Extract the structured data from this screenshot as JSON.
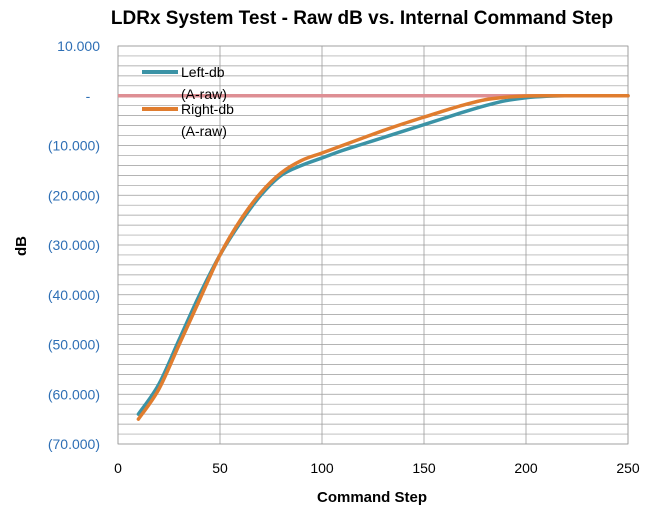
{
  "colors": {
    "left_series": "#3b93a6",
    "right_series": "#e07d2f",
    "reference_line": "#de8f94",
    "grid_line": "#9b9b9b",
    "y_tick_text": "#2e6fb5"
  },
  "chart_data": {
    "type": "line",
    "title": "LDRx System Test - Raw dB vs. Internal Command Step",
    "xlabel": "Command Step",
    "ylabel": "dB",
    "xlim": [
      0,
      250
    ],
    "ylim": [
      -70,
      10
    ],
    "x_ticks": [
      0,
      50,
      100,
      150,
      200,
      250
    ],
    "x_tick_labels": [
      "0",
      "50",
      "100",
      "150",
      "200",
      "250"
    ],
    "y_ticks": [
      10,
      0,
      -10,
      -20,
      -30,
      -40,
      -50,
      -60,
      -70
    ],
    "y_tick_labels": [
      "10.000",
      "-",
      "(10.000)",
      "(20.000)",
      "(30.000)",
      "(40.000)",
      "(50.000)",
      "(60.000)",
      "(70.000)"
    ],
    "grid": true,
    "legend_position": "top-left",
    "reference_line": {
      "y": 0,
      "x_range": [
        0,
        250
      ]
    },
    "series": [
      {
        "name": "Left-db (A-raw)",
        "legend_lines": [
          "Left-db",
          "(A-raw)"
        ],
        "x": [
          10,
          20,
          30,
          40,
          50,
          60,
          70,
          80,
          90,
          100,
          110,
          120,
          130,
          140,
          150,
          160,
          170,
          180,
          190,
          200,
          210,
          220,
          225,
          250
        ],
        "values": [
          -64.0,
          -58.0,
          -49.0,
          -40.0,
          -32.0,
          -25.5,
          -20.0,
          -16.0,
          -14.0,
          -12.5,
          -11.0,
          -9.7,
          -8.4,
          -7.1,
          -5.8,
          -4.5,
          -3.2,
          -2.0,
          -1.0,
          -0.4,
          -0.1,
          0.0,
          0.0,
          0.0
        ]
      },
      {
        "name": "Right-db (A-raw)",
        "legend_lines": [
          "Right-db",
          "(A-raw)"
        ],
        "x": [
          10,
          20,
          30,
          40,
          50,
          60,
          70,
          80,
          90,
          100,
          110,
          120,
          130,
          140,
          150,
          160,
          170,
          180,
          190,
          200,
          210,
          220,
          225,
          250
        ],
        "values": [
          -65.0,
          -59.0,
          -50.0,
          -41.0,
          -32.0,
          -25.0,
          -19.5,
          -15.5,
          -13.0,
          -11.5,
          -10.0,
          -8.5,
          -7.0,
          -5.6,
          -4.3,
          -3.0,
          -1.8,
          -0.8,
          -0.3,
          -0.05,
          0.0,
          0.0,
          0.0,
          0.0
        ]
      }
    ]
  }
}
